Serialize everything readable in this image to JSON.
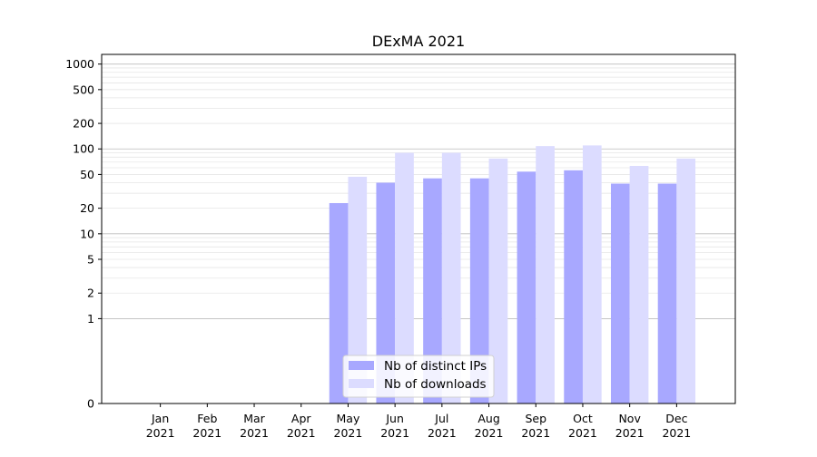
{
  "chart_data": {
    "type": "bar",
    "title": "DExMA 2021",
    "xlabel": "",
    "ylabel": "",
    "y_scale": "symlog",
    "ylim": [
      0,
      1300
    ],
    "grid": "horizontal",
    "legend_position": "lower-center",
    "categories": [
      {
        "month": "Jan",
        "year": "2021"
      },
      {
        "month": "Feb",
        "year": "2021"
      },
      {
        "month": "Mar",
        "year": "2021"
      },
      {
        "month": "Apr",
        "year": "2021"
      },
      {
        "month": "May",
        "year": "2021"
      },
      {
        "month": "Jun",
        "year": "2021"
      },
      {
        "month": "Jul",
        "year": "2021"
      },
      {
        "month": "Aug",
        "year": "2021"
      },
      {
        "month": "Sep",
        "year": "2021"
      },
      {
        "month": "Oct",
        "year": "2021"
      },
      {
        "month": "Nov",
        "year": "2021"
      },
      {
        "month": "Dec",
        "year": "2021"
      }
    ],
    "y_ticks": [
      0,
      1,
      2,
      5,
      10,
      20,
      50,
      100,
      200,
      500,
      1000
    ],
    "series": [
      {
        "name": "Nb of distinct IPs",
        "color": "#a8a8ff",
        "values": [
          0,
          0,
          0,
          0,
          23,
          40,
          45,
          45,
          54,
          56,
          39,
          39
        ]
      },
      {
        "name": "Nb of downloads",
        "color": "#dcdcff",
        "values": [
          0,
          0,
          0,
          0,
          47,
          90,
          90,
          77,
          108,
          110,
          63,
          77
        ]
      }
    ]
  }
}
